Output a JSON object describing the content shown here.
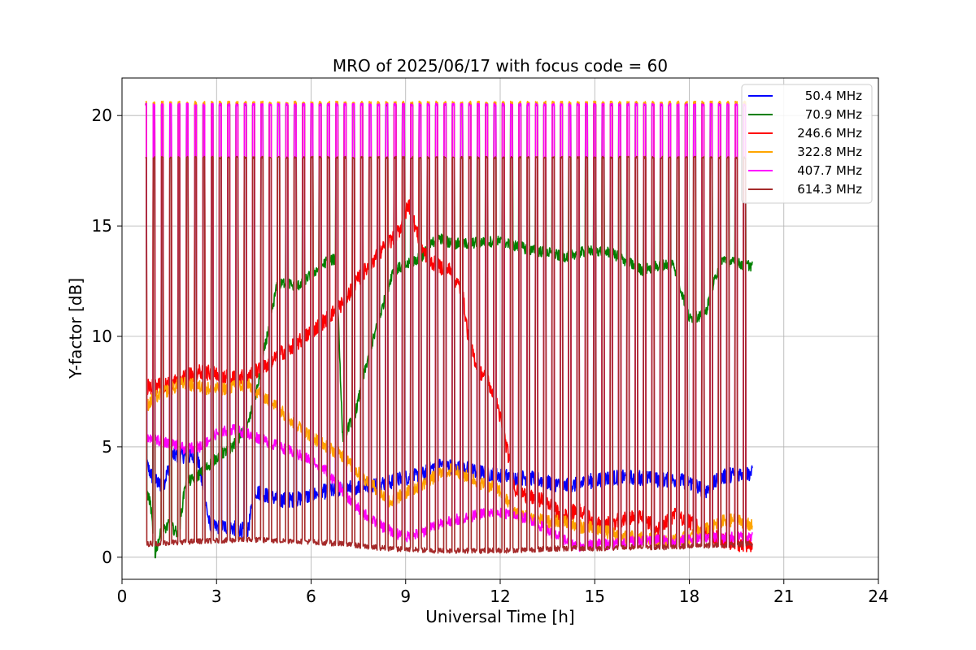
{
  "chart_data": {
    "type": "line",
    "title": "MRO of 2025/06/17 with focus code = 60",
    "xlabel": "Universal Time [h]",
    "ylabel": "Y-factor [dB]",
    "xlim": [
      0,
      24
    ],
    "ylim": [
      -1.0,
      21.7
    ],
    "xticks": [
      0,
      3,
      6,
      9,
      12,
      15,
      18,
      21,
      24
    ],
    "xtick_labels": [
      "0",
      "3",
      "6",
      "9",
      "12",
      "15",
      "18",
      "21",
      "24"
    ],
    "yticks": [
      0,
      5,
      10,
      15,
      20
    ],
    "ytick_labels": [
      "0",
      "5",
      "10",
      "15",
      "20"
    ],
    "grid": true,
    "legend_position": "top-right",
    "calibration_pulses": {
      "count": 73,
      "start_h": 0.75,
      "end_h": 19.75,
      "peak_values": {
        "50.4 MHz": 20.5,
        "70.9 MHz": 20.5,
        "246.6 MHz": 20.5,
        "322.8 MHz": 20.6,
        "407.7 MHz": 20.5,
        "614.3 MHz": 18.1
      }
    },
    "series": [
      {
        "name": "50.4 MHz",
        "color": "#0000ff",
        "noise_db": 0.35,
        "x": [
          0.75,
          1.0,
          1.3,
          1.6,
          2.0,
          2.4,
          2.8,
          3.2,
          3.6,
          4.0,
          4.2,
          4.6,
          5.0,
          5.5,
          6.0,
          6.5,
          7.0,
          7.5,
          8.0,
          8.5,
          9.0,
          9.5,
          10.0,
          10.5,
          11.0,
          11.5,
          12.0,
          12.5,
          13.0,
          13.5,
          14.0,
          14.5,
          15.0,
          15.5,
          16.0,
          16.5,
          17.0,
          17.5,
          18.0,
          18.5,
          19.0,
          19.5,
          20.0
        ],
        "y": [
          4.3,
          3.5,
          3.2,
          4.6,
          4.6,
          4.5,
          1.3,
          1.4,
          1.3,
          1.2,
          3.0,
          2.8,
          2.6,
          2.6,
          2.8,
          3.0,
          3.1,
          3.2,
          3.3,
          3.4,
          3.6,
          3.7,
          4.2,
          4.1,
          4.0,
          3.8,
          3.7,
          3.6,
          3.6,
          3.4,
          3.2,
          3.3,
          3.5,
          3.6,
          3.6,
          3.6,
          3.5,
          3.5,
          3.4,
          3.0,
          3.6,
          3.8,
          3.8
        ]
      },
      {
        "name": "70.9 MHz",
        "color": "#008000",
        "noise_db": 0.25,
        "x": [
          0.75,
          0.9,
          1.05,
          1.2,
          1.5,
          1.8,
          2.0,
          2.5,
          3.0,
          3.5,
          4.0,
          4.3,
          4.6,
          4.9,
          5.2,
          5.5,
          6.0,
          6.5,
          6.8,
          7.0,
          7.4,
          7.8,
          8.2,
          8.6,
          9.0,
          9.5,
          10.0,
          10.5,
          11.0,
          11.5,
          12.0,
          12.5,
          13.0,
          13.5,
          14.0,
          14.5,
          15.0,
          15.5,
          16.0,
          16.5,
          17.0,
          17.5,
          18.0,
          18.5,
          19.0,
          19.5,
          20.0
        ],
        "y": [
          3.0,
          2.5,
          0.1,
          1.0,
          1.5,
          1.0,
          3.3,
          3.8,
          4.5,
          5.0,
          6.0,
          7.7,
          10.0,
          12.2,
          12.5,
          12.2,
          12.8,
          13.4,
          13.5,
          5.4,
          6.5,
          9.0,
          11.0,
          13.0,
          13.2,
          13.6,
          14.5,
          14.2,
          14.2,
          14.3,
          14.3,
          14.1,
          13.9,
          13.8,
          13.6,
          13.8,
          13.9,
          13.8,
          13.4,
          13.0,
          13.2,
          13.3,
          10.8,
          11.0,
          13.5,
          13.3,
          13.2
        ]
      },
      {
        "name": "246.6 MHz",
        "color": "#ff0000",
        "noise_db": 0.35,
        "x": [
          0.75,
          1.5,
          2.0,
          2.5,
          3.0,
          3.5,
          4.0,
          4.5,
          5.0,
          5.5,
          6.0,
          6.5,
          7.0,
          7.5,
          8.0,
          8.5,
          8.8,
          9.1,
          9.4,
          9.7,
          10.0,
          10.4,
          10.8,
          11.0,
          11.3,
          11.6,
          11.9,
          12.2,
          12.5,
          13.0,
          13.5,
          14.0,
          14.5,
          15.0,
          15.5,
          16.0,
          16.5,
          17.0,
          17.5,
          18.0,
          18.5,
          19.0,
          19.5,
          20.0
        ],
        "y": [
          7.7,
          7.8,
          8.2,
          8.4,
          8.3,
          8.1,
          8.2,
          8.6,
          9.2,
          9.6,
          10.2,
          10.8,
          11.5,
          12.6,
          13.5,
          14.3,
          14.8,
          16.0,
          14.5,
          13.5,
          13.2,
          13.0,
          12.0,
          9.8,
          8.5,
          8.0,
          7.0,
          5.0,
          3.0,
          2.7,
          2.5,
          1.8,
          2.2,
          1.5,
          1.5,
          1.8,
          1.8,
          1.2,
          1.9,
          1.6,
          1.2,
          0.8,
          0.6,
          0.6
        ]
      },
      {
        "name": "322.8 MHz",
        "color": "#ffa500",
        "noise_db": 0.3,
        "x": [
          0.75,
          1.0,
          1.5,
          2.0,
          2.5,
          3.0,
          3.5,
          4.0,
          4.5,
          5.0,
          5.5,
          6.0,
          6.5,
          7.0,
          7.5,
          8.0,
          8.5,
          9.0,
          9.5,
          10.0,
          10.5,
          11.0,
          11.5,
          12.0,
          12.5,
          13.0,
          13.5,
          14.0,
          14.5,
          15.0,
          15.5,
          16.0,
          16.5,
          17.0,
          17.5,
          18.0,
          18.5,
          19.0,
          19.5,
          20.0
        ],
        "y": [
          6.8,
          7.2,
          7.6,
          7.9,
          7.7,
          7.6,
          7.7,
          7.8,
          7.3,
          6.7,
          6.0,
          5.5,
          5.0,
          4.6,
          3.8,
          3.2,
          2.5,
          2.9,
          3.3,
          3.7,
          4.0,
          3.6,
          3.3,
          3.0,
          2.0,
          1.8,
          1.6,
          1.6,
          1.4,
          1.3,
          1.1,
          0.9,
          0.9,
          0.8,
          0.8,
          0.9,
          1.3,
          1.6,
          1.7,
          1.4
        ]
      },
      {
        "name": "407.7 MHz",
        "color": "#ff00ff",
        "noise_db": 0.25,
        "x": [
          0.75,
          1.0,
          1.5,
          2.0,
          2.5,
          3.0,
          3.5,
          4.0,
          4.5,
          5.0,
          5.5,
          6.0,
          6.5,
          7.0,
          7.5,
          8.0,
          8.5,
          9.0,
          9.5,
          10.0,
          10.5,
          11.0,
          11.5,
          12.0,
          12.5,
          13.0,
          13.5,
          14.0,
          14.5,
          15.0,
          15.5,
          16.0,
          16.5,
          17.0,
          17.5,
          18.0,
          18.5,
          19.0,
          19.5,
          20.0
        ],
        "y": [
          5.4,
          5.3,
          5.2,
          4.9,
          5.0,
          5.6,
          5.8,
          5.6,
          5.3,
          5.0,
          4.7,
          4.4,
          3.9,
          3.0,
          2.2,
          1.6,
          1.2,
          0.9,
          1.1,
          1.5,
          1.7,
          1.8,
          2.0,
          2.0,
          1.9,
          1.7,
          1.2,
          0.8,
          0.5,
          0.6,
          0.6,
          0.7,
          0.7,
          0.8,
          0.7,
          0.8,
          0.9,
          0.9,
          0.9,
          0.9
        ]
      },
      {
        "name": "614.3 MHz",
        "color": "#a52a2a",
        "noise_db": 0.12,
        "x": [
          0.75,
          2.0,
          3.0,
          4.0,
          5.0,
          6.0,
          7.0,
          8.0,
          9.0,
          10.0,
          11.0,
          12.0,
          13.0,
          14.0,
          15.0,
          16.0,
          17.0,
          18.0,
          19.0,
          20.0
        ],
        "y": [
          0.6,
          0.7,
          0.75,
          0.8,
          0.75,
          0.7,
          0.6,
          0.45,
          0.35,
          0.3,
          0.3,
          0.3,
          0.35,
          0.4,
          0.4,
          0.45,
          0.45,
          0.5,
          0.55,
          0.6
        ]
      }
    ]
  }
}
